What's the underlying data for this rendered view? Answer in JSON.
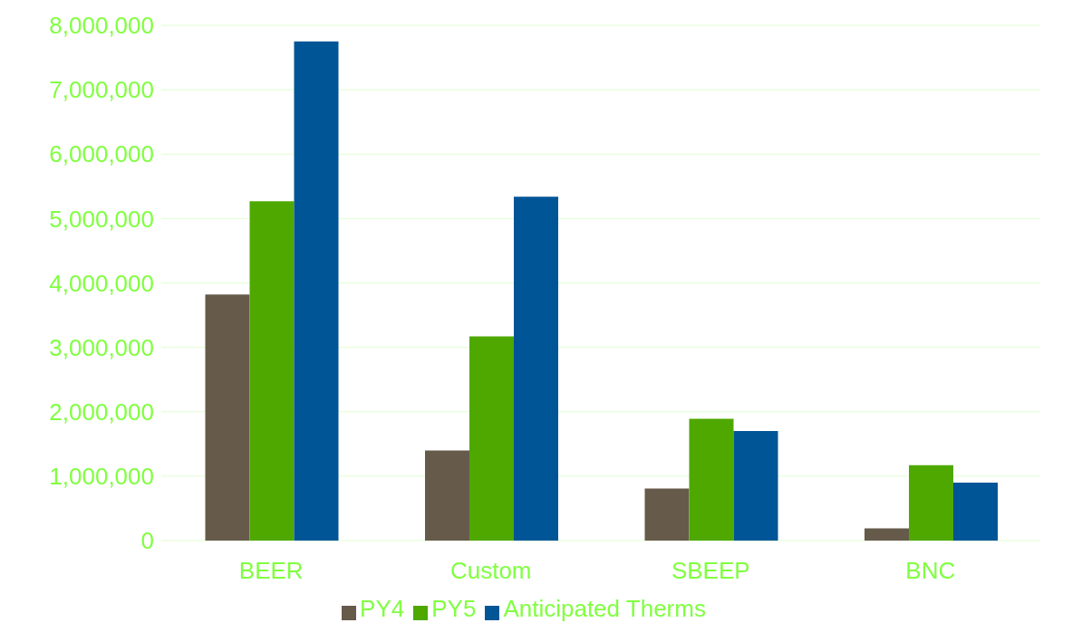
{
  "chart_data": {
    "type": "bar",
    "categories": [
      "BEER",
      "Custom",
      "SBEEP",
      "BNC"
    ],
    "series": [
      {
        "name": "PY4",
        "color": "#665a4b",
        "values": [
          3820000,
          1400000,
          810000,
          190000
        ]
      },
      {
        "name": "PY5",
        "color": "#4ea800",
        "values": [
          5270000,
          3170000,
          1890000,
          1170000
        ]
      },
      {
        "name": "Anticipated Therms",
        "color": "#005596",
        "values": [
          7750000,
          5340000,
          1700000,
          900000
        ]
      }
    ],
    "ylim": [
      0,
      8000000
    ],
    "yticks": [
      {
        "value": 0,
        "label": "0"
      },
      {
        "value": 1000000,
        "label": "1,000,000"
      },
      {
        "value": 2000000,
        "label": "2,000,000"
      },
      {
        "value": 3000000,
        "label": "3,000,000"
      },
      {
        "value": 4000000,
        "label": "4,000,000"
      },
      {
        "value": 5000000,
        "label": "5,000,000"
      },
      {
        "value": 6000000,
        "label": "6,000,000"
      },
      {
        "value": 7000000,
        "label": "7,000,000"
      },
      {
        "value": 8000000,
        "label": "8,000,000"
      }
    ],
    "grid": "y",
    "legend": "bottom"
  }
}
